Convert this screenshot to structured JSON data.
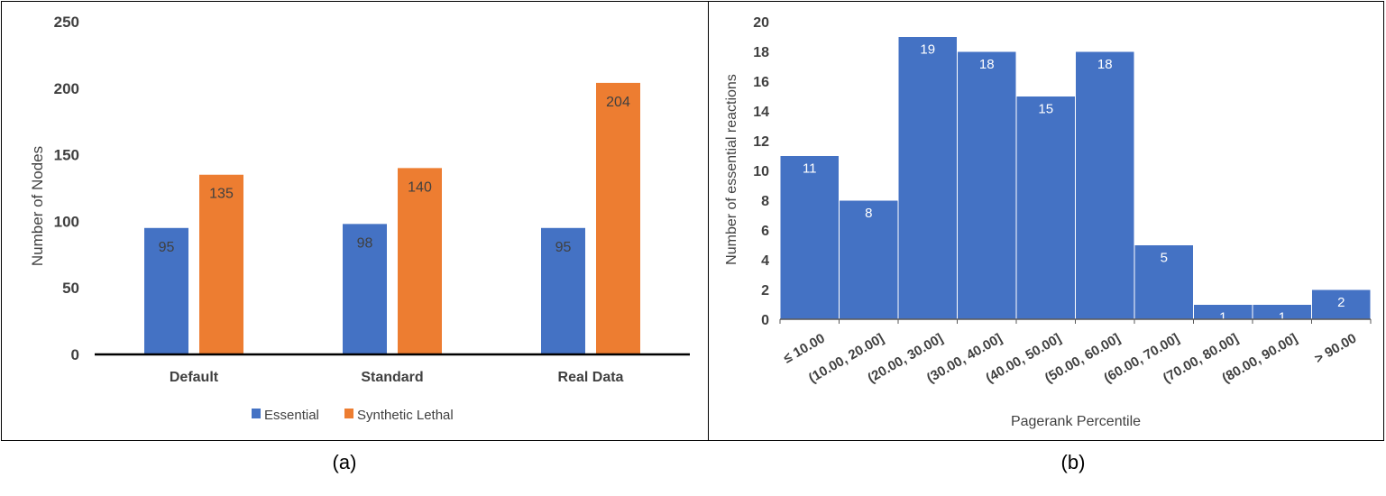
{
  "chart_data": [
    {
      "type": "bar",
      "ylabel": "Number of Nodes",
      "xlabel": "",
      "ylim": [
        0,
        250
      ],
      "yticks": [
        0,
        50,
        100,
        150,
        200,
        250
      ],
      "categories": [
        "Default",
        "Standard",
        "Real Data"
      ],
      "series": [
        {
          "name": "Essential",
          "values": [
            95,
            98,
            95
          ],
          "color": "#4472C4"
        },
        {
          "name": "Synthetic Lethal",
          "values": [
            135,
            140,
            204
          ],
          "color": "#ED7D31"
        }
      ],
      "legend": "bottom",
      "grid": false,
      "caption": "(a)"
    },
    {
      "type": "bar",
      "xlabel": "Pagerank Percentile",
      "ylabel": "Number of essential reactions",
      "ylim": [
        0,
        20
      ],
      "yticks": [
        0,
        2,
        4,
        6,
        8,
        10,
        12,
        14,
        16,
        18,
        20
      ],
      "categories": [
        "≤ 10.00",
        "(10.00, 20.00]",
        "(20.00, 30.00]",
        "(30.00, 40.00]",
        "(40.00, 50.00]",
        "(50.00, 60.00]",
        "(60.00, 70.00]",
        "(70.00, 80.00]",
        "(80.00, 90.00]",
        "> 90.00"
      ],
      "values": [
        11,
        8,
        19,
        18,
        15,
        18,
        5,
        1,
        1,
        2
      ],
      "color": "#4472C4",
      "grid": false,
      "caption": "(b)"
    }
  ]
}
